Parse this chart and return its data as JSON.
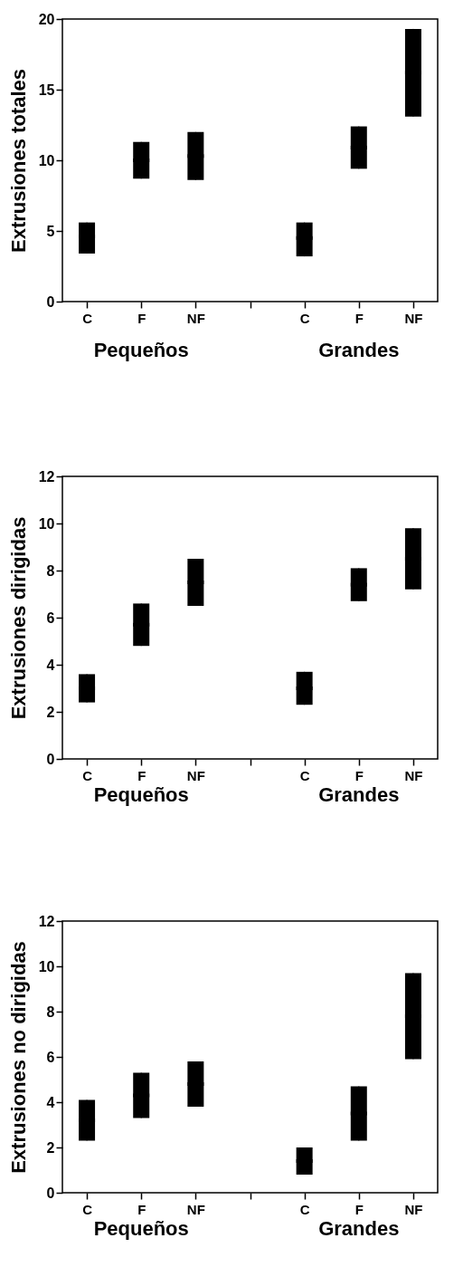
{
  "chart_data": [
    {
      "type": "box",
      "ylabel": "Extrusiones totales",
      "color": "#000000",
      "categories": [
        "C",
        "F",
        "NF",
        null,
        "C",
        "F",
        "NF"
      ],
      "ylim": [
        0,
        20
      ],
      "yticks": [
        0,
        5,
        10,
        15,
        20
      ],
      "annotations": [
        "Pequeños",
        "Grandes"
      ],
      "boxes": [
        {
          "low": 3.4,
          "q1": 3.4,
          "median": 4.6,
          "q3": 5.6,
          "high": 5.6
        },
        {
          "low": 8.7,
          "q1": 8.7,
          "median": 10.0,
          "q3": 11.3,
          "high": 11.3
        },
        {
          "low": 8.6,
          "q1": 8.6,
          "median": 10.3,
          "q3": 12.0,
          "high": 12.0
        },
        null,
        {
          "low": 3.2,
          "q1": 3.2,
          "median": 4.5,
          "q3": 5.6,
          "high": 5.6
        },
        {
          "low": 9.4,
          "q1": 9.4,
          "median": 10.9,
          "q3": 12.4,
          "high": 12.4
        },
        {
          "low": 13.1,
          "q1": 13.1,
          "median": 16.2,
          "q3": 19.3,
          "high": 19.3
        }
      ]
    },
    {
      "type": "box",
      "ylabel": "Extrusiones dirigidas",
      "color": "#000000",
      "categories": [
        "C",
        "F",
        "NF",
        null,
        "C",
        "F",
        "NF"
      ],
      "ylim": [
        0,
        12
      ],
      "yticks": [
        0,
        2,
        4,
        6,
        8,
        10,
        12
      ],
      "annotations": [
        "Pequeños",
        "Grandes"
      ],
      "boxes": [
        {
          "low": 2.4,
          "q1": 2.4,
          "median": 3.0,
          "q3": 3.6,
          "high": 3.6
        },
        {
          "low": 4.8,
          "q1": 4.8,
          "median": 5.7,
          "q3": 6.6,
          "high": 6.6
        },
        {
          "low": 6.5,
          "q1": 6.5,
          "median": 7.5,
          "q3": 8.5,
          "high": 8.5
        },
        null,
        {
          "low": 2.3,
          "q1": 2.3,
          "median": 3.0,
          "q3": 3.7,
          "high": 3.7
        },
        {
          "low": 6.7,
          "q1": 6.7,
          "median": 7.4,
          "q3": 8.1,
          "high": 8.1
        },
        {
          "low": 7.2,
          "q1": 7.2,
          "median": 8.5,
          "q3": 9.8,
          "high": 9.8
        }
      ]
    },
    {
      "type": "box",
      "ylabel": "Extrusiones no dirigidas",
      "color": "#000000",
      "categories": [
        "C",
        "F",
        "NF",
        null,
        "C",
        "F",
        "NF"
      ],
      "ylim": [
        0,
        12
      ],
      "yticks": [
        0,
        2,
        4,
        6,
        8,
        10,
        12
      ],
      "annotations": [
        "Pequeños",
        "Grandes"
      ],
      "boxes": [
        {
          "low": 2.3,
          "q1": 2.3,
          "median": 3.2,
          "q3": 4.1,
          "high": 4.1
        },
        {
          "low": 3.3,
          "q1": 3.3,
          "median": 4.3,
          "q3": 5.3,
          "high": 5.3
        },
        {
          "low": 3.8,
          "q1": 3.8,
          "median": 4.8,
          "q3": 5.8,
          "high": 5.8
        },
        null,
        {
          "low": 0.8,
          "q1": 0.8,
          "median": 1.4,
          "q3": 2.0,
          "high": 2.0
        },
        {
          "low": 2.3,
          "q1": 2.3,
          "median": 3.5,
          "q3": 4.7,
          "high": 4.7
        },
        {
          "low": 5.9,
          "q1": 5.9,
          "median": 7.8,
          "q3": 9.7,
          "high": 9.7
        }
      ]
    }
  ]
}
